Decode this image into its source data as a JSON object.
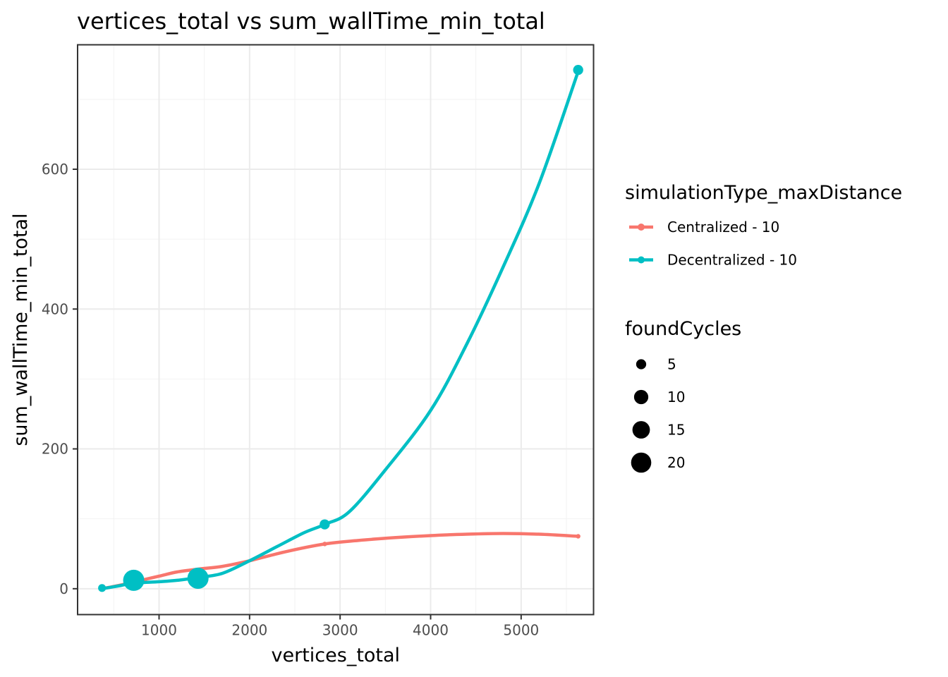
{
  "chart_data": {
    "type": "scatter",
    "title": "vertices_total  vs  sum_wallTime_min_total",
    "xlabel": "vertices_total",
    "ylabel": "sum_wallTime_min_total",
    "xlim": [
      100,
      5800
    ],
    "ylim": [
      -37,
      778
    ],
    "x_ticks": [
      1000,
      2000,
      3000,
      4000,
      5000
    ],
    "x_tick_labels": [
      "1000",
      "2000",
      "3000",
      "4000",
      "5000"
    ],
    "y_ticks": [
      0,
      200,
      400,
      600
    ],
    "y_tick_labels": [
      "0",
      "200",
      "400",
      "600"
    ],
    "grid": true,
    "legend_placement": "right",
    "color_legend": {
      "title": "simulationType_maxDistance",
      "entries": [
        {
          "label": "Centralized - 10",
          "color": "#F8766D"
        },
        {
          "label": "Decentralized - 10",
          "color": "#00BFC4"
        }
      ]
    },
    "size_legend": {
      "title": "foundCycles",
      "entries": [
        {
          "label": "5",
          "value": 5
        },
        {
          "label": "10",
          "value": 10
        },
        {
          "label": "15",
          "value": 15
        },
        {
          "label": "20",
          "value": 20
        }
      ]
    },
    "series": [
      {
        "name": "Centralized - 10",
        "color": "#F8766D",
        "points": [
          {
            "x": 370,
            "y": 1,
            "foundCycles": 1
          },
          {
            "x": 720,
            "y": 12,
            "foundCycles": 1
          },
          {
            "x": 1430,
            "y": 27,
            "foundCycles": 1
          },
          {
            "x": 2830,
            "y": 64,
            "foundCycles": 1
          },
          {
            "x": 5630,
            "y": 75,
            "foundCycles": 1
          }
        ],
        "smooth": [
          [
            370,
            0
          ],
          [
            600,
            6
          ],
          [
            800,
            12
          ],
          [
            1000,
            18
          ],
          [
            1200,
            24
          ],
          [
            1430,
            28
          ],
          [
            1700,
            32
          ],
          [
            2000,
            40
          ],
          [
            2400,
            53
          ],
          [
            2830,
            64
          ],
          [
            3200,
            69
          ],
          [
            3600,
            73
          ],
          [
            4000,
            76
          ],
          [
            4400,
            78
          ],
          [
            4800,
            79
          ],
          [
            5200,
            78
          ],
          [
            5630,
            75
          ]
        ]
      },
      {
        "name": "Decentralized - 10",
        "color": "#00BFC4",
        "points": [
          {
            "x": 370,
            "y": 1,
            "foundCycles": 3
          },
          {
            "x": 720,
            "y": 12,
            "foundCycles": 22
          },
          {
            "x": 1430,
            "y": 15,
            "foundCycles": 22
          },
          {
            "x": 2830,
            "y": 92,
            "foundCycles": 5
          },
          {
            "x": 5630,
            "y": 742,
            "foundCycles": 5
          }
        ],
        "smooth": [
          [
            370,
            0
          ],
          [
            550,
            4
          ],
          [
            720,
            8
          ],
          [
            1000,
            10
          ],
          [
            1200,
            12
          ],
          [
            1430,
            16
          ],
          [
            1700,
            22
          ],
          [
            2000,
            40
          ],
          [
            2300,
            60
          ],
          [
            2600,
            80
          ],
          [
            2830,
            92
          ],
          [
            3100,
            110
          ],
          [
            3500,
            170
          ],
          [
            4000,
            255
          ],
          [
            4400,
            350
          ],
          [
            4800,
            460
          ],
          [
            5200,
            580
          ],
          [
            5630,
            740
          ]
        ]
      }
    ]
  }
}
